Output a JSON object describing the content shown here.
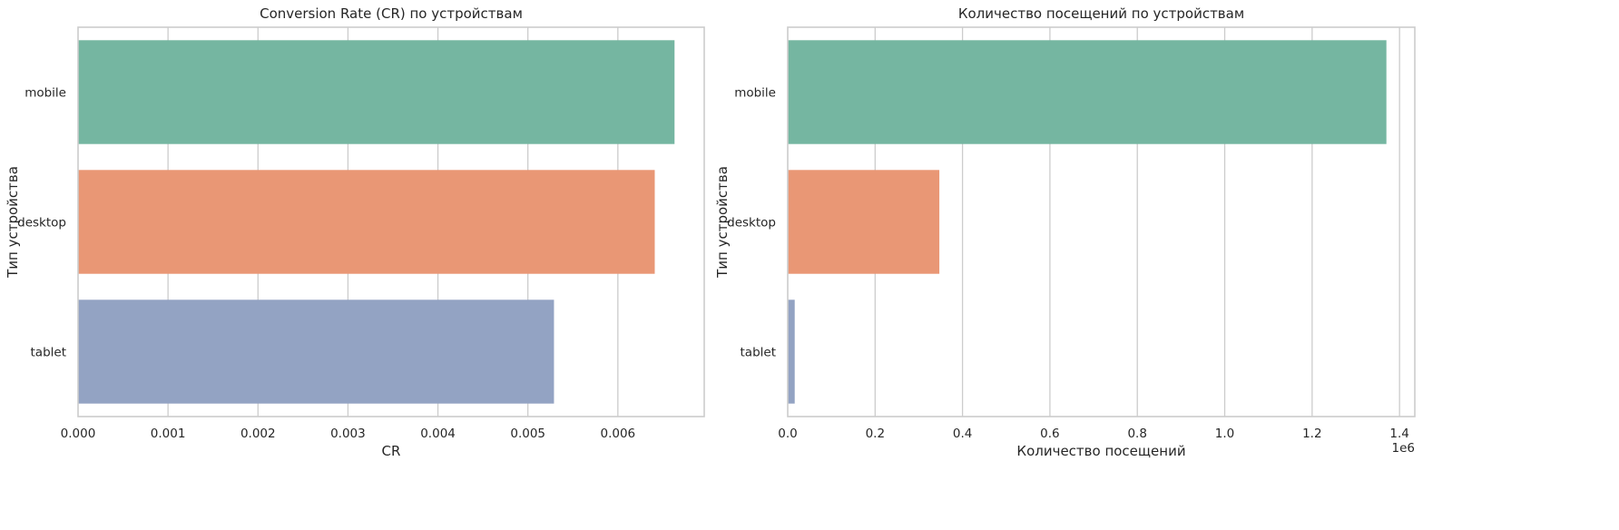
{
  "chart_data": [
    {
      "type": "bar",
      "orientation": "horizontal",
      "title": "Conversion Rate (CR) по устройствам",
      "xlabel": "CR",
      "ylabel": "Тип устройства",
      "categories": [
        "mobile",
        "desktop",
        "tablet"
      ],
      "values": [
        0.00663,
        0.00641,
        0.00529
      ],
      "colors": [
        "#75b6a1",
        "#e99775",
        "#93a3c3"
      ],
      "xlim": [
        0,
        0.00696
      ],
      "xticks": [
        0,
        0.001,
        0.002,
        0.003,
        0.004,
        0.005,
        0.006
      ],
      "xtick_labels": [
        "0.000",
        "0.001",
        "0.002",
        "0.003",
        "0.004",
        "0.005",
        "0.006"
      ],
      "offset_label": "",
      "grid": "vertical"
    },
    {
      "type": "bar",
      "orientation": "horizontal",
      "title": "Количество посещений по устройствам",
      "xlabel": "Количество посещений",
      "ylabel": "Тип устройства",
      "categories": [
        "mobile",
        "desktop",
        "tablet"
      ],
      "values": [
        1370000,
        347000,
        16000
      ],
      "colors": [
        "#75b6a1",
        "#e99775",
        "#93a3c3"
      ],
      "xlim": [
        0,
        1435000
      ],
      "xticks": [
        0,
        200000,
        400000,
        600000,
        800000,
        1000000,
        1200000,
        1400000
      ],
      "xtick_labels": [
        "0.0",
        "0.2",
        "0.4",
        "0.6",
        "0.8",
        "1.0",
        "1.2",
        "1.4"
      ],
      "offset_label": "1e6",
      "grid": "vertical"
    }
  ]
}
